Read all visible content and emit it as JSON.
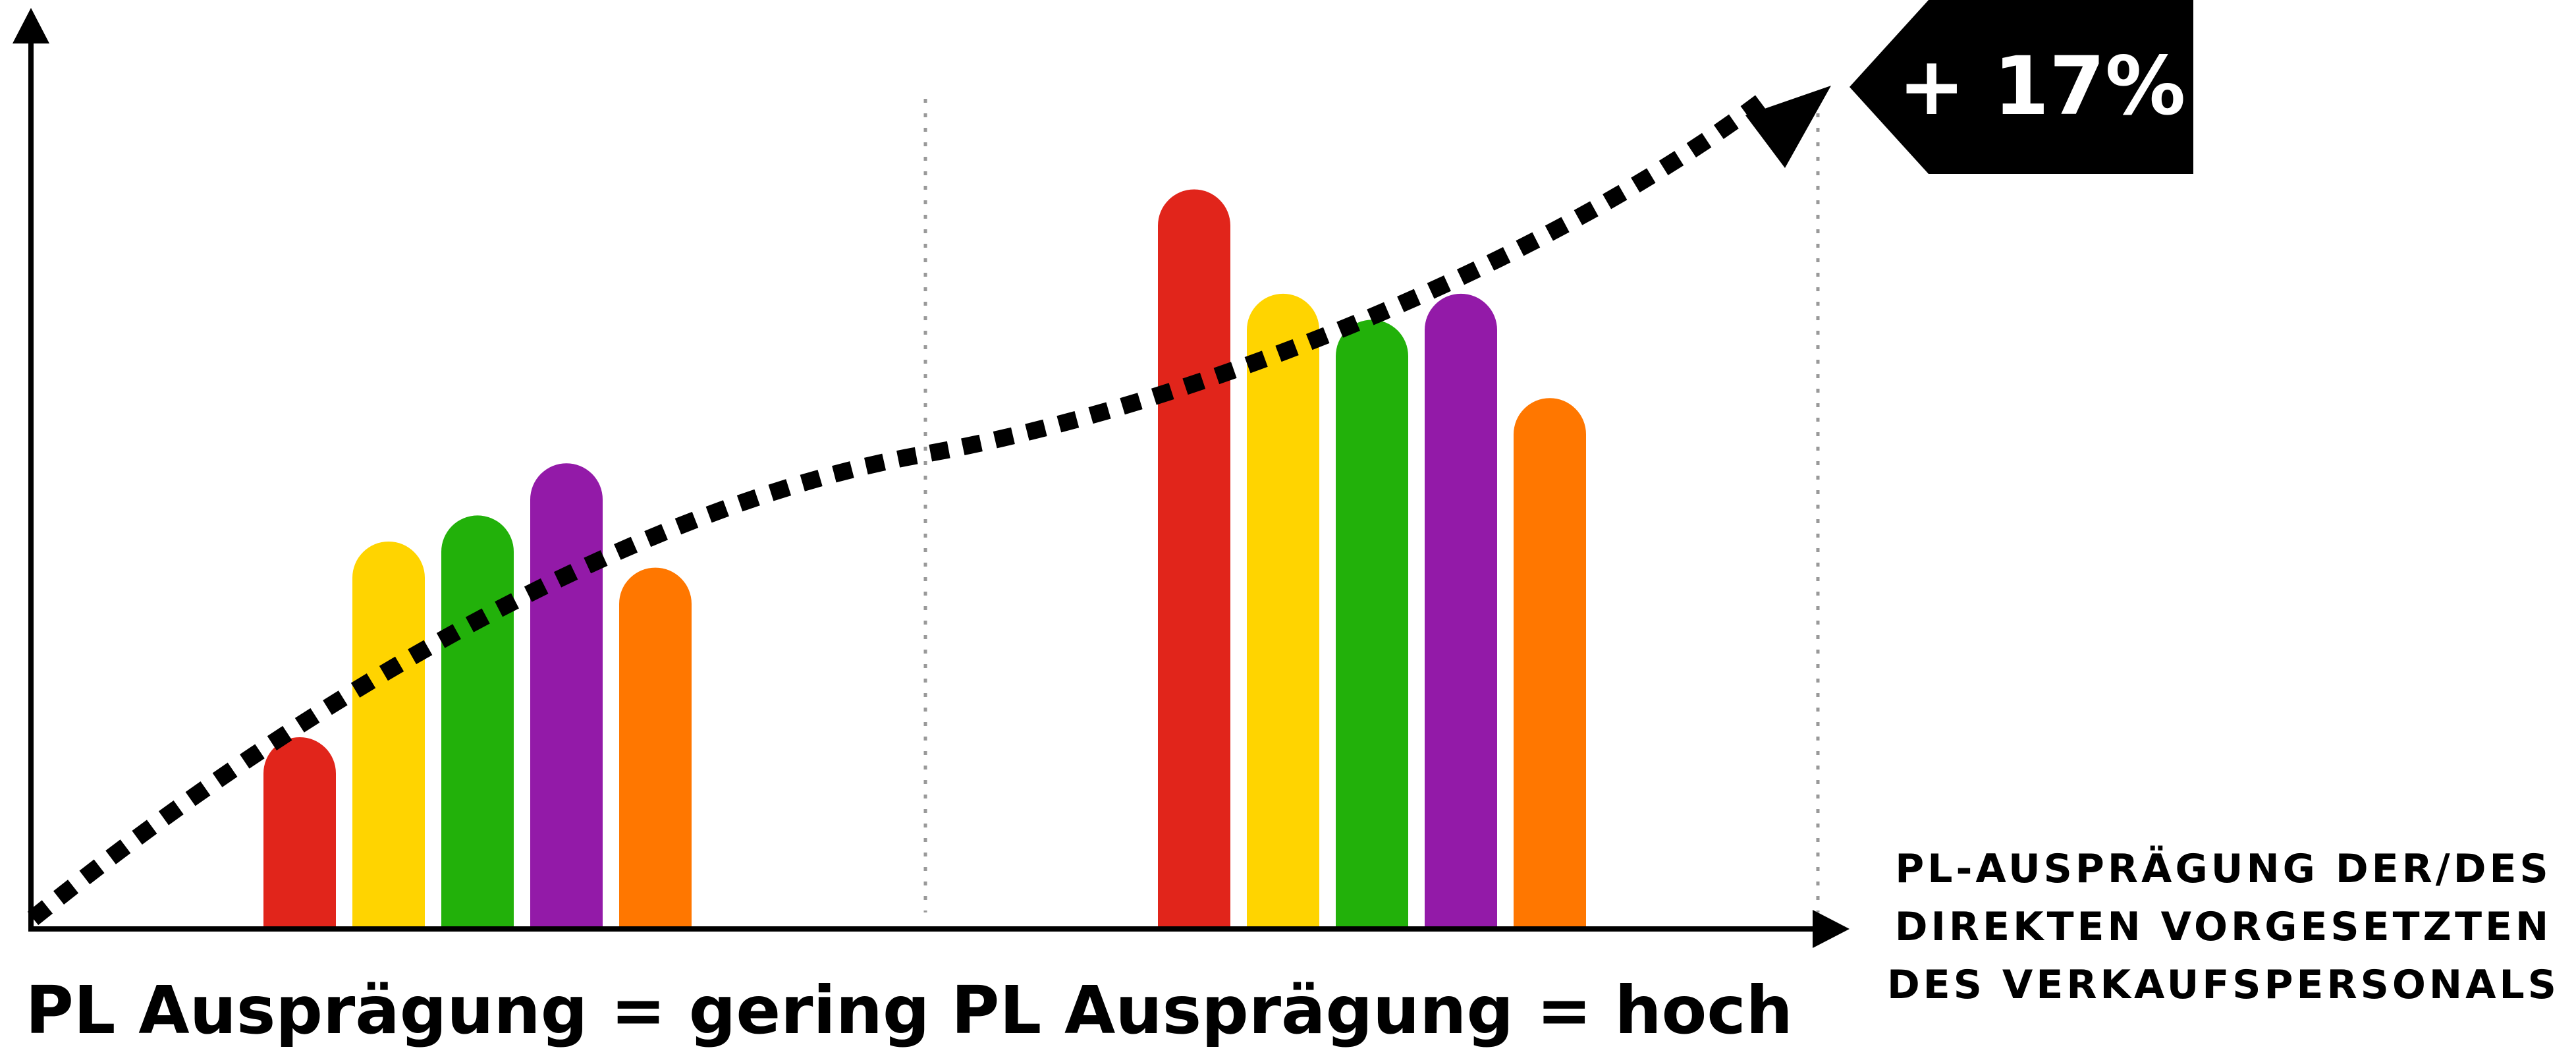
{
  "chart_data": {
    "type": "bar",
    "categories": [
      "PL Ausprägung = gering",
      "PL Ausprägung = hoch"
    ],
    "series": [
      {
        "color": "#E1251B",
        "values": [
          29,
          113
        ]
      },
      {
        "color": "#FFD400",
        "values": [
          59,
          97
        ]
      },
      {
        "color": "#22B10A",
        "values": [
          63,
          93
        ]
      },
      {
        "color": "#931AA8",
        "values": [
          71,
          97
        ]
      },
      {
        "color": "#FF7700",
        "values": [
          55,
          81
        ]
      }
    ],
    "ylim": [
      0,
      138
    ],
    "title": "",
    "ylabel": "",
    "xlabel_lines": [
      "PL-AUSPRÄGUNG DER/DES",
      "DIREKTEN VORGESETZTEN",
      "DES VERKAUFSPERSONALS"
    ],
    "trend": {
      "style": "dotted-arrow",
      "values": [
        0,
        133
      ],
      "annotation": "+ 17%"
    },
    "grid": false,
    "legend": "none"
  }
}
